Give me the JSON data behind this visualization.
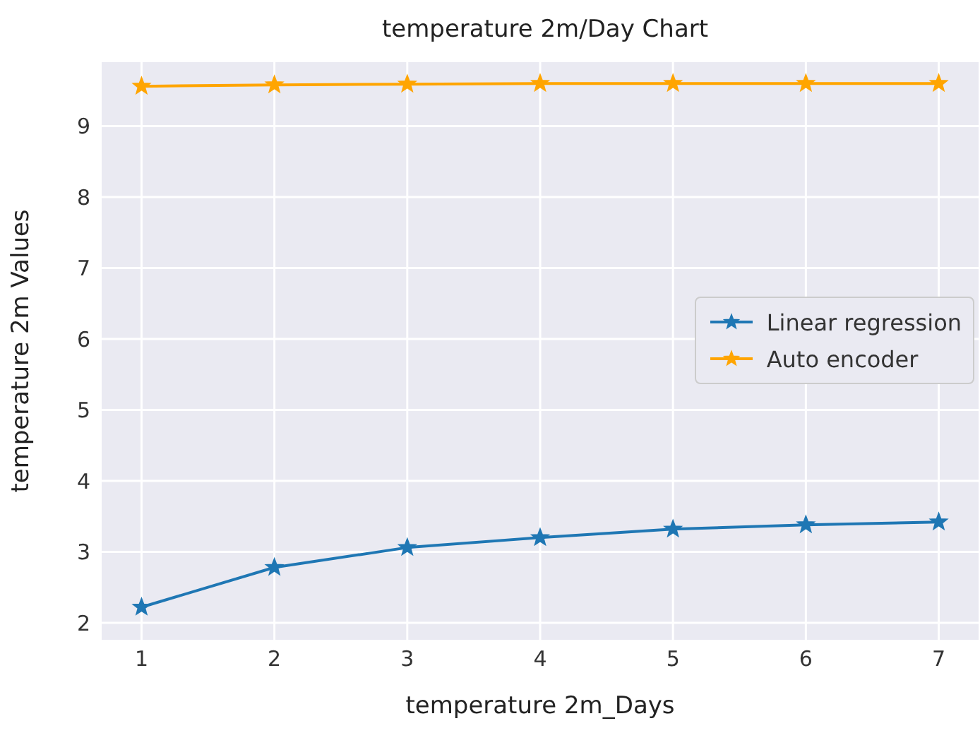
{
  "chart_data": {
    "type": "line",
    "title": "temperature 2m/Day Chart",
    "xlabel": "temperature 2m_Days",
    "ylabel": "temperature 2m Values",
    "x": [
      1,
      2,
      3,
      4,
      5,
      6,
      7
    ],
    "series": [
      {
        "name": "Linear regression",
        "color": "#1f77b4",
        "values": [
          2.22,
          2.78,
          3.06,
          3.2,
          3.32,
          3.38,
          3.42
        ]
      },
      {
        "name": "Auto encoder",
        "color": "#ffa500",
        "values": [
          9.56,
          9.58,
          9.59,
          9.6,
          9.6,
          9.6,
          9.6
        ]
      }
    ],
    "xlim": [
      0.7,
      7.3
    ],
    "xticks": [
      1,
      2,
      3,
      4,
      5,
      6,
      7
    ],
    "ylim": [
      1.76,
      9.9
    ],
    "yticks": [
      2,
      3,
      4,
      5,
      6,
      7,
      8,
      9
    ],
    "grid": true,
    "legend": "right",
    "marker": "star",
    "line_style": "solid"
  }
}
